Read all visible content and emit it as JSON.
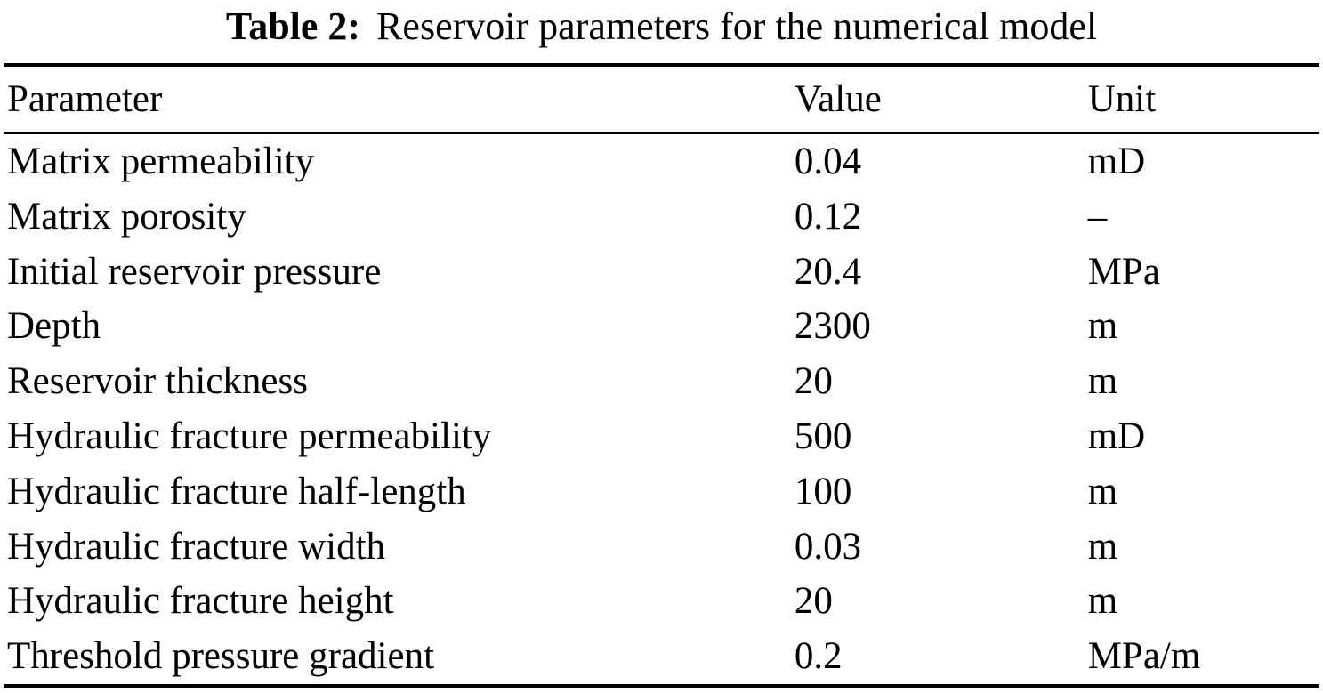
{
  "caption": {
    "label": "Table 2:",
    "text": "Reservoir parameters for the numerical model"
  },
  "columns": [
    "Parameter",
    "Value",
    "Unit"
  ],
  "rows": [
    {
      "parameter": "Matrix permeability",
      "value": "0.04",
      "unit": "mD"
    },
    {
      "parameter": "Matrix porosity",
      "value": "0.12",
      "unit": "–"
    },
    {
      "parameter": "Initial reservoir pressure",
      "value": "20.4",
      "unit": "MPa"
    },
    {
      "parameter": "Depth",
      "value": "2300",
      "unit": "m"
    },
    {
      "parameter": "Reservoir thickness",
      "value": "20",
      "unit": "m"
    },
    {
      "parameter": "Hydraulic fracture permeability",
      "value": "500",
      "unit": "mD"
    },
    {
      "parameter": "Hydraulic fracture half-length",
      "value": "100",
      "unit": "m"
    },
    {
      "parameter": "Hydraulic fracture width",
      "value": "0.03",
      "unit": "m"
    },
    {
      "parameter": "Hydraulic fracture height",
      "value": "20",
      "unit": "m"
    },
    {
      "parameter": "Threshold pressure gradient",
      "value": "0.2",
      "unit": "MPa/m"
    }
  ],
  "text_color": "#000000",
  "background_color": "#ffffff"
}
